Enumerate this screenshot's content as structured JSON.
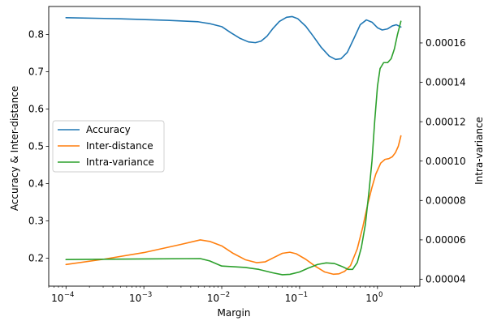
{
  "chart_data": {
    "type": "line",
    "xlabel": "Margin",
    "ylabel_left": "Accuracy & Inter-distance",
    "ylabel_right": "Intra-variance",
    "xscale": "log",
    "xlim": [
      6e-05,
      3.5
    ],
    "xticks": [
      {
        "value": 0.0001,
        "base": "10",
        "exp": "−4"
      },
      {
        "value": 0.001,
        "base": "10",
        "exp": "−3"
      },
      {
        "value": 0.01,
        "base": "10",
        "exp": "−2"
      },
      {
        "value": 0.1,
        "base": "10",
        "exp": "−1"
      },
      {
        "value": 1,
        "base": "10",
        "exp": "0"
      }
    ],
    "ylim_left": [
      0.125,
      0.875
    ],
    "yticks_left": [
      {
        "value": 0.2,
        "label": "0.2"
      },
      {
        "value": 0.3,
        "label": "0.3"
      },
      {
        "value": 0.4,
        "label": "0.4"
      },
      {
        "value": 0.5,
        "label": "0.5"
      },
      {
        "value": 0.6,
        "label": "0.6"
      },
      {
        "value": 0.7,
        "label": "0.7"
      },
      {
        "value": 0.8,
        "label": "0.8"
      }
    ],
    "ylim_right": [
      3.65e-05,
      0.0001785
    ],
    "yticks_right": [
      {
        "value": 4e-05,
        "label": "0.00004"
      },
      {
        "value": 6e-05,
        "label": "0.00006"
      },
      {
        "value": 8e-05,
        "label": "0.00008"
      },
      {
        "value": 0.0001,
        "label": "0.00010"
      },
      {
        "value": 0.00012,
        "label": "0.00012"
      },
      {
        "value": 0.00014,
        "label": "0.00014"
      },
      {
        "value": 0.00016,
        "label": "0.00016"
      }
    ],
    "legend_position": "center-left",
    "grid": false,
    "series": [
      {
        "name": "Accuracy",
        "axis": "left",
        "color": "#1f77b4",
        "points": [
          [
            0.0001,
            0.845
          ],
          [
            0.0005,
            0.842
          ],
          [
            0.002,
            0.838
          ],
          [
            0.005,
            0.834
          ],
          [
            0.007,
            0.829
          ],
          [
            0.01,
            0.821
          ],
          [
            0.013,
            0.805
          ],
          [
            0.017,
            0.79
          ],
          [
            0.022,
            0.78
          ],
          [
            0.027,
            0.778
          ],
          [
            0.032,
            0.782
          ],
          [
            0.038,
            0.795
          ],
          [
            0.045,
            0.815
          ],
          [
            0.055,
            0.835
          ],
          [
            0.068,
            0.846
          ],
          [
            0.08,
            0.848
          ],
          [
            0.095,
            0.842
          ],
          [
            0.12,
            0.822
          ],
          [
            0.15,
            0.795
          ],
          [
            0.19,
            0.765
          ],
          [
            0.24,
            0.742
          ],
          [
            0.29,
            0.733
          ],
          [
            0.34,
            0.735
          ],
          [
            0.41,
            0.752
          ],
          [
            0.5,
            0.79
          ],
          [
            0.6,
            0.826
          ],
          [
            0.72,
            0.839
          ],
          [
            0.85,
            0.833
          ],
          [
            1.0,
            0.818
          ],
          [
            1.15,
            0.812
          ],
          [
            1.35,
            0.815
          ],
          [
            1.55,
            0.823
          ],
          [
            1.75,
            0.826
          ],
          [
            2.0,
            0.82
          ]
        ]
      },
      {
        "name": "Inter-distance",
        "axis": "left",
        "color": "#ff7f0e",
        "points": [
          [
            0.0001,
            0.183
          ],
          [
            0.0003,
            0.197
          ],
          [
            0.001,
            0.215
          ],
          [
            0.003,
            0.237
          ],
          [
            0.0053,
            0.249
          ],
          [
            0.007,
            0.245
          ],
          [
            0.01,
            0.233
          ],
          [
            0.014,
            0.213
          ],
          [
            0.02,
            0.196
          ],
          [
            0.028,
            0.188
          ],
          [
            0.036,
            0.19
          ],
          [
            0.047,
            0.202
          ],
          [
            0.06,
            0.213
          ],
          [
            0.075,
            0.216
          ],
          [
            0.09,
            0.212
          ],
          [
            0.12,
            0.197
          ],
          [
            0.16,
            0.178
          ],
          [
            0.21,
            0.163
          ],
          [
            0.27,
            0.157
          ],
          [
            0.32,
            0.158
          ],
          [
            0.38,
            0.165
          ],
          [
            0.45,
            0.18
          ],
          [
            0.55,
            0.225
          ],
          [
            0.65,
            0.285
          ],
          [
            0.75,
            0.345
          ],
          [
            0.85,
            0.39
          ],
          [
            0.95,
            0.425
          ],
          [
            1.1,
            0.455
          ],
          [
            1.25,
            0.465
          ],
          [
            1.4,
            0.467
          ],
          [
            1.55,
            0.472
          ],
          [
            1.7,
            0.483
          ],
          [
            1.85,
            0.5
          ],
          [
            2.0,
            0.528
          ]
        ]
      },
      {
        "name": "Intra-variance",
        "axis": "right",
        "color": "#2ca02c",
        "points": [
          [
            0.0001,
            5e-05
          ],
          [
            0.001,
            5.03e-05
          ],
          [
            0.0053,
            5.05e-05
          ],
          [
            0.007,
            4.93e-05
          ],
          [
            0.01,
            4.67e-05
          ],
          [
            0.015,
            4.63e-05
          ],
          [
            0.02,
            4.6e-05
          ],
          [
            0.03,
            4.5e-05
          ],
          [
            0.045,
            4.33e-05
          ],
          [
            0.06,
            4.23e-05
          ],
          [
            0.075,
            4.25e-05
          ],
          [
            0.1,
            4.37e-05
          ],
          [
            0.13,
            4.57e-05
          ],
          [
            0.17,
            4.75e-05
          ],
          [
            0.22,
            4.83e-05
          ],
          [
            0.28,
            4.8e-05
          ],
          [
            0.35,
            4.65e-05
          ],
          [
            0.42,
            4.5e-05
          ],
          [
            0.48,
            4.5e-05
          ],
          [
            0.55,
            4.85e-05
          ],
          [
            0.62,
            5.6e-05
          ],
          [
            0.7,
            6.8e-05
          ],
          [
            0.78,
            8.5e-05
          ],
          [
            0.85,
            0.0001
          ],
          [
            0.92,
            0.00012
          ],
          [
            1.0,
            0.000138
          ],
          [
            1.08,
            0.000147
          ],
          [
            1.2,
            0.00015
          ],
          [
            1.35,
            0.00015
          ],
          [
            1.5,
            0.000152
          ],
          [
            1.65,
            0.000157
          ],
          [
            1.8,
            0.000164
          ],
          [
            2.0,
            0.000171
          ]
        ]
      }
    ]
  }
}
